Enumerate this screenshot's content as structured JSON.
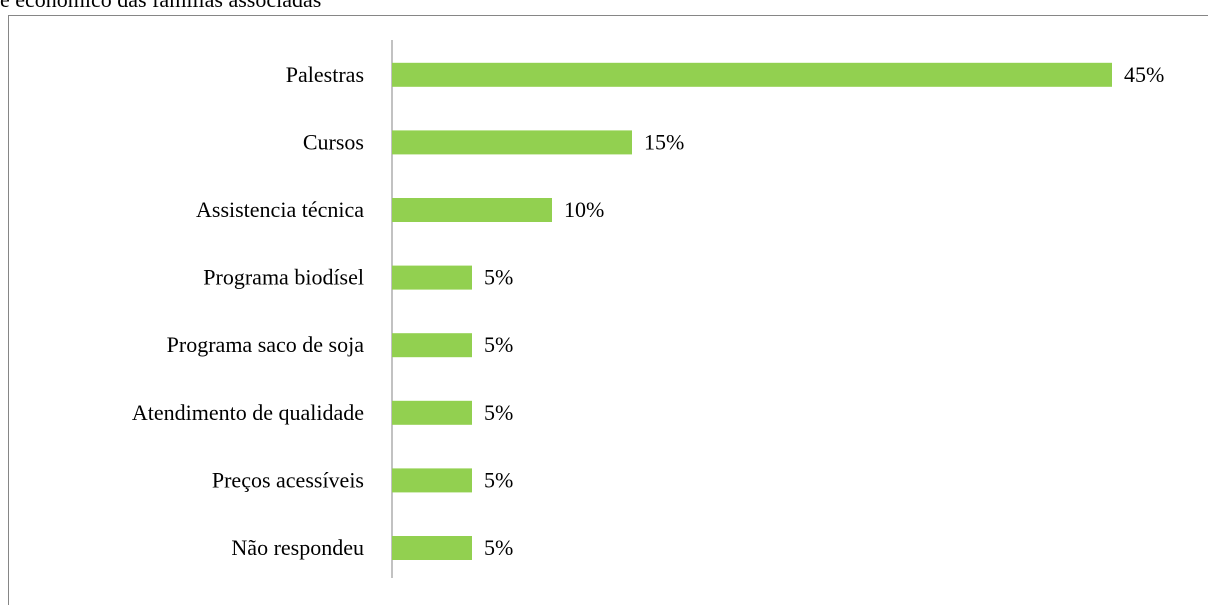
{
  "chart_data": {
    "type": "bar",
    "orientation": "horizontal",
    "title": "e econômico das famílias associadas",
    "categories": [
      "Palestras",
      "Cursos",
      "Assistencia técnica",
      "Programa biodísel",
      "Programa saco de soja",
      "Atendimento de qualidade",
      "Preços acessíveis",
      "Não respondeu"
    ],
    "values": [
      45,
      15,
      10,
      5,
      5,
      5,
      5,
      5
    ],
    "value_labels": [
      "45%",
      "15%",
      "10%",
      "5%",
      "5%",
      "5%",
      "5%",
      "5%"
    ],
    "color": "#92d050"
  }
}
